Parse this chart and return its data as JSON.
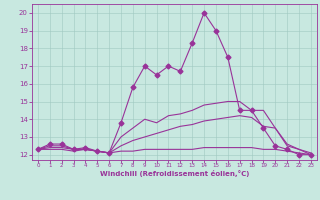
{
  "xlabel": "Windchill (Refroidissement éolien,°C)",
  "xlim": [
    -0.5,
    23.5
  ],
  "ylim": [
    11.7,
    20.5
  ],
  "yticks": [
    12,
    13,
    14,
    15,
    16,
    17,
    18,
    19,
    20
  ],
  "xticks": [
    0,
    1,
    2,
    3,
    4,
    5,
    6,
    7,
    8,
    9,
    10,
    11,
    12,
    13,
    14,
    15,
    16,
    17,
    18,
    19,
    20,
    21,
    22,
    23
  ],
  "bg_color": "#c8e8e0",
  "line_color": "#993399",
  "series": [
    {
      "x": [
        0,
        1,
        2,
        3,
        4,
        5,
        6,
        7,
        8,
        9,
        10,
        11,
        12,
        13,
        14,
        15,
        16,
        17,
        18,
        19,
        20,
        21,
        22,
        23
      ],
      "y": [
        12.3,
        12.6,
        12.6,
        12.3,
        12.4,
        12.2,
        12.1,
        13.8,
        15.8,
        17.0,
        16.5,
        17.0,
        16.7,
        18.3,
        20.0,
        19.0,
        17.5,
        14.5,
        14.5,
        13.5,
        12.5,
        12.3,
        12.0,
        12.0
      ],
      "marker": "D",
      "markersize": 2.5
    },
    {
      "x": [
        0,
        1,
        2,
        3,
        4,
        5,
        6,
        7,
        8,
        9,
        10,
        11,
        12,
        13,
        14,
        15,
        16,
        17,
        18,
        19,
        20,
        21,
        22,
        23
      ],
      "y": [
        12.3,
        12.5,
        12.5,
        12.3,
        12.3,
        12.2,
        12.1,
        13.0,
        13.5,
        14.0,
        13.8,
        14.2,
        14.3,
        14.5,
        14.8,
        14.9,
        15.0,
        15.0,
        14.5,
        14.5,
        13.5,
        12.5,
        12.3,
        12.1
      ],
      "marker": null,
      "markersize": 0
    },
    {
      "x": [
        0,
        1,
        2,
        3,
        4,
        5,
        6,
        7,
        8,
        9,
        10,
        11,
        12,
        13,
        14,
        15,
        16,
        17,
        18,
        19,
        20,
        21,
        22,
        23
      ],
      "y": [
        12.3,
        12.4,
        12.4,
        12.3,
        12.3,
        12.2,
        12.1,
        12.5,
        12.8,
        13.0,
        13.2,
        13.4,
        13.6,
        13.7,
        13.9,
        14.0,
        14.1,
        14.2,
        14.1,
        13.6,
        13.5,
        12.6,
        12.3,
        12.0
      ],
      "marker": null,
      "markersize": 0
    },
    {
      "x": [
        0,
        1,
        2,
        3,
        4,
        5,
        6,
        7,
        8,
        9,
        10,
        11,
        12,
        13,
        14,
        15,
        16,
        17,
        18,
        19,
        20,
        21,
        22,
        23
      ],
      "y": [
        12.3,
        12.3,
        12.3,
        12.2,
        12.3,
        12.2,
        12.1,
        12.2,
        12.2,
        12.3,
        12.3,
        12.3,
        12.3,
        12.3,
        12.4,
        12.4,
        12.4,
        12.4,
        12.4,
        12.3,
        12.3,
        12.2,
        12.1,
        12.0
      ],
      "marker": null,
      "markersize": 0
    }
  ]
}
